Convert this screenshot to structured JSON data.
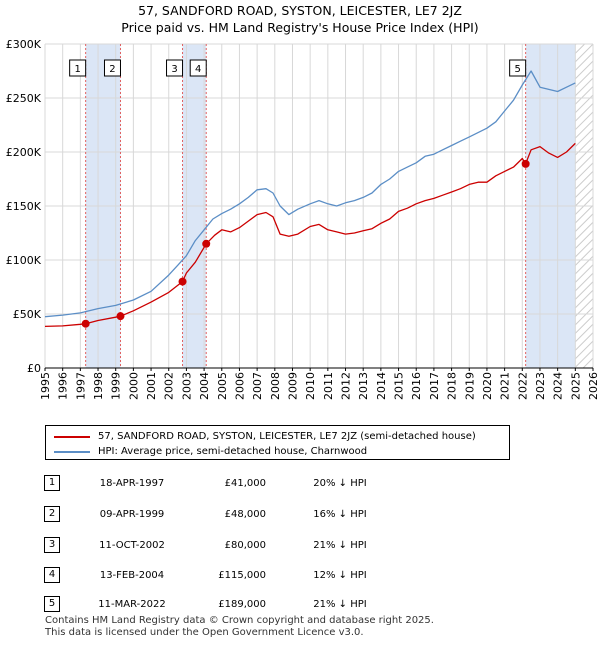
{
  "title_line1": "57, SANDFORD ROAD, SYSTON, LEICESTER, LE7 2JZ",
  "title_line2": "Price paid vs. HM Land Registry's House Price Index (HPI)",
  "colors": {
    "property": "#cc0000",
    "hpi": "#5b8ec6",
    "band": "#dbe6f6",
    "grid": "#d8d8d8",
    "marker_line": "#e06060"
  },
  "chart_data": {
    "type": "line",
    "title": "Price paid vs. HM Land Registry's House Price Index (HPI)",
    "xlabel": "",
    "ylabel": "",
    "xlim": [
      1995,
      2026
    ],
    "ylim": [
      0,
      300000
    ],
    "y_ticks": [
      {
        "value": 0,
        "label": "£0"
      },
      {
        "value": 50000,
        "label": "£50K"
      },
      {
        "value": 100000,
        "label": "£100K"
      },
      {
        "value": 150000,
        "label": "£150K"
      },
      {
        "value": 200000,
        "label": "£200K"
      },
      {
        "value": 250000,
        "label": "£250K"
      },
      {
        "value": 300000,
        "label": "£300K"
      }
    ],
    "x_ticks": [
      "1995",
      "1996",
      "1997",
      "1998",
      "1999",
      "2000",
      "2001",
      "2002",
      "2003",
      "2004",
      "2005",
      "2006",
      "2007",
      "2008",
      "2009",
      "2010",
      "2011",
      "2012",
      "2013",
      "2014",
      "2015",
      "2016",
      "2017",
      "2018",
      "2019",
      "2020",
      "2021",
      "2022",
      "2023",
      "2024",
      "2025",
      "2026"
    ],
    "grid": true,
    "highlight_bands": [
      {
        "from": 1997.3,
        "to": 1999.27
      },
      {
        "from": 2002.78,
        "to": 2004.12
      },
      {
        "from": 2022.19,
        "to": 2025.0
      }
    ],
    "hatch_after": 2025.0,
    "series": [
      {
        "name": "57, SANDFORD ROAD, SYSTON, LEICESTER, LE7 2JZ (semi-detached house)",
        "color": "#cc0000",
        "x": [
          1995.0,
          1996.0,
          1997.0,
          1997.3,
          1998.0,
          1999.0,
          1999.27,
          2000.0,
          2001.0,
          2002.0,
          2002.78,
          2003.0,
          2003.5,
          2004.12,
          2004.6,
          2005.0,
          2005.5,
          2006.0,
          2006.5,
          2007.0,
          2007.5,
          2007.9,
          2008.3,
          2008.8,
          2009.3,
          2010.0,
          2010.5,
          2011.0,
          2011.5,
          2012.0,
          2012.5,
          2013.0,
          2013.5,
          2014.0,
          2014.5,
          2015.0,
          2015.5,
          2016.0,
          2016.5,
          2017.0,
          2017.5,
          2018.0,
          2018.5,
          2019.0,
          2019.5,
          2020.0,
          2020.5,
          2021.0,
          2021.5,
          2022.0,
          2022.19,
          2022.5,
          2023.0,
          2023.5,
          2024.0,
          2024.5,
          2025.0
        ],
        "y": [
          38500,
          39000,
          40500,
          41000,
          44000,
          47000,
          48000,
          53000,
          61000,
          70000,
          80000,
          88000,
          98000,
          115000,
          123000,
          128000,
          126000,
          130000,
          136000,
          142000,
          144000,
          140000,
          124000,
          122000,
          124000,
          131000,
          133000,
          128000,
          126000,
          124000,
          125000,
          127000,
          129000,
          134000,
          138000,
          145000,
          148000,
          152000,
          155000,
          157000,
          160000,
          163000,
          166000,
          170000,
          172000,
          172000,
          178000,
          182000,
          186000,
          194000,
          189000,
          202000,
          205000,
          199000,
          195000,
          200000,
          208000
        ]
      },
      {
        "name": "HPI: Average price, semi-detached house, Charnwood",
        "color": "#5b8ec6",
        "x": [
          1995.0,
          1996.0,
          1997.0,
          1998.0,
          1999.0,
          2000.0,
          2001.0,
          2002.0,
          2002.5,
          2003.0,
          2003.5,
          2004.0,
          2004.5,
          2005.0,
          2005.5,
          2006.0,
          2006.5,
          2007.0,
          2007.5,
          2007.9,
          2008.3,
          2008.8,
          2009.3,
          2010.0,
          2010.5,
          2011.0,
          2011.5,
          2012.0,
          2012.5,
          2013.0,
          2013.5,
          2014.0,
          2014.5,
          2015.0,
          2015.5,
          2016.0,
          2016.5,
          2017.0,
          2017.5,
          2018.0,
          2018.5,
          2019.0,
          2019.5,
          2020.0,
          2020.5,
          2021.0,
          2021.5,
          2022.0,
          2022.5,
          2023.0,
          2023.5,
          2024.0,
          2024.5,
          2025.0
        ],
        "y": [
          47500,
          49000,
          51000,
          55000,
          58000,
          63000,
          71000,
          86000,
          95000,
          104000,
          118000,
          128000,
          138000,
          143000,
          147000,
          152000,
          158000,
          165000,
          166000,
          162000,
          150000,
          142000,
          147000,
          152000,
          155000,
          152000,
          150000,
          153000,
          155000,
          158000,
          162000,
          170000,
          175000,
          182000,
          186000,
          190000,
          196000,
          198000,
          202000,
          206000,
          210000,
          214000,
          218000,
          222000,
          228000,
          238000,
          248000,
          262000,
          275000,
          260000,
          258000,
          256000,
          260000,
          264000
        ]
      }
    ],
    "sales": [
      {
        "id": "1",
        "date": "18-APR-1997",
        "x": 1997.3,
        "price": 41000,
        "price_label": "£41,000",
        "hpi": "20% ↓ HPI"
      },
      {
        "id": "2",
        "date": "09-APR-1999",
        "x": 1999.27,
        "price": 48000,
        "price_label": "£48,000",
        "hpi": "16% ↓ HPI"
      },
      {
        "id": "3",
        "date": "11-OCT-2002",
        "x": 2002.78,
        "price": 80000,
        "price_label": "£80,000",
        "hpi": "21% ↓ HPI"
      },
      {
        "id": "4",
        "date": "13-FEB-2004",
        "x": 2004.12,
        "price": 115000,
        "price_label": "£115,000",
        "hpi": "12% ↓ HPI"
      },
      {
        "id": "5",
        "date": "11-MAR-2022",
        "x": 2022.19,
        "price": 189000,
        "price_label": "£189,000",
        "hpi": "21% ↓ HPI"
      }
    ]
  },
  "legend": {
    "property_label": "57, SANDFORD ROAD, SYSTON, LEICESTER, LE7 2JZ (semi-detached house)",
    "hpi_label": "HPI: Average price, semi-detached house, Charnwood"
  },
  "footer_line1": "Contains HM Land Registry data © Crown copyright and database right 2025.",
  "footer_line2": "This data is licensed under the Open Government Licence v3.0."
}
